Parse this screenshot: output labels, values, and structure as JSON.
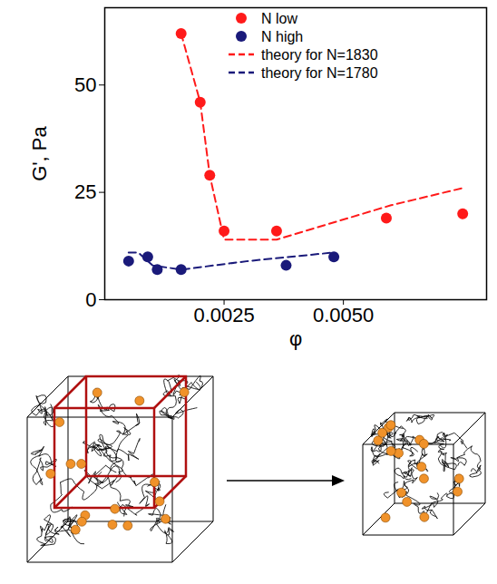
{
  "chart_data": {
    "type": "scatter",
    "x_label": "φ",
    "y_label": "G', Pa",
    "xlim": [
      0,
      0.008
    ],
    "xticks": [
      0.0025,
      {
        "value": 0.005,
        "label": "0.0050"
      }
    ],
    "ylim": [
      0,
      68
    ],
    "yticks": [
      0,
      25,
      50
    ],
    "legend": "top",
    "series": [
      {
        "name": "N low",
        "type": "scatter",
        "marker": "circle",
        "color": "#ff1a1a",
        "x": [
          0.0016,
          0.002,
          0.0022,
          0.0025,
          0.0036,
          0.0059,
          0.0075
        ],
        "values": [
          62,
          46,
          29,
          16,
          16,
          19,
          20
        ]
      },
      {
        "name": "N high",
        "type": "scatter",
        "marker": "circle",
        "color": "#1a1a7a",
        "x": [
          0.0005,
          0.0009,
          0.0011,
          0.0016,
          0.0038,
          0.0048
        ],
        "values": [
          9,
          10,
          7,
          7,
          8,
          10
        ]
      },
      {
        "name": "theory for N=1830",
        "type": "line",
        "line_style": "dashed",
        "color": "#ff1a1a",
        "x": [
          0.0016,
          0.002,
          0.0022,
          0.0025,
          0.0036,
          0.006,
          0.0075
        ],
        "values": [
          62,
          46,
          29,
          14,
          14,
          22,
          26
        ]
      },
      {
        "name": "theory for N=1780",
        "type": "line",
        "line_style": "dashed",
        "color": "#1a1a7a",
        "x": [
          0.0005,
          0.0007,
          0.001,
          0.0016,
          0.003,
          0.0048
        ],
        "values": [
          11,
          11,
          8,
          7,
          9,
          11
        ]
      }
    ]
  }
}
